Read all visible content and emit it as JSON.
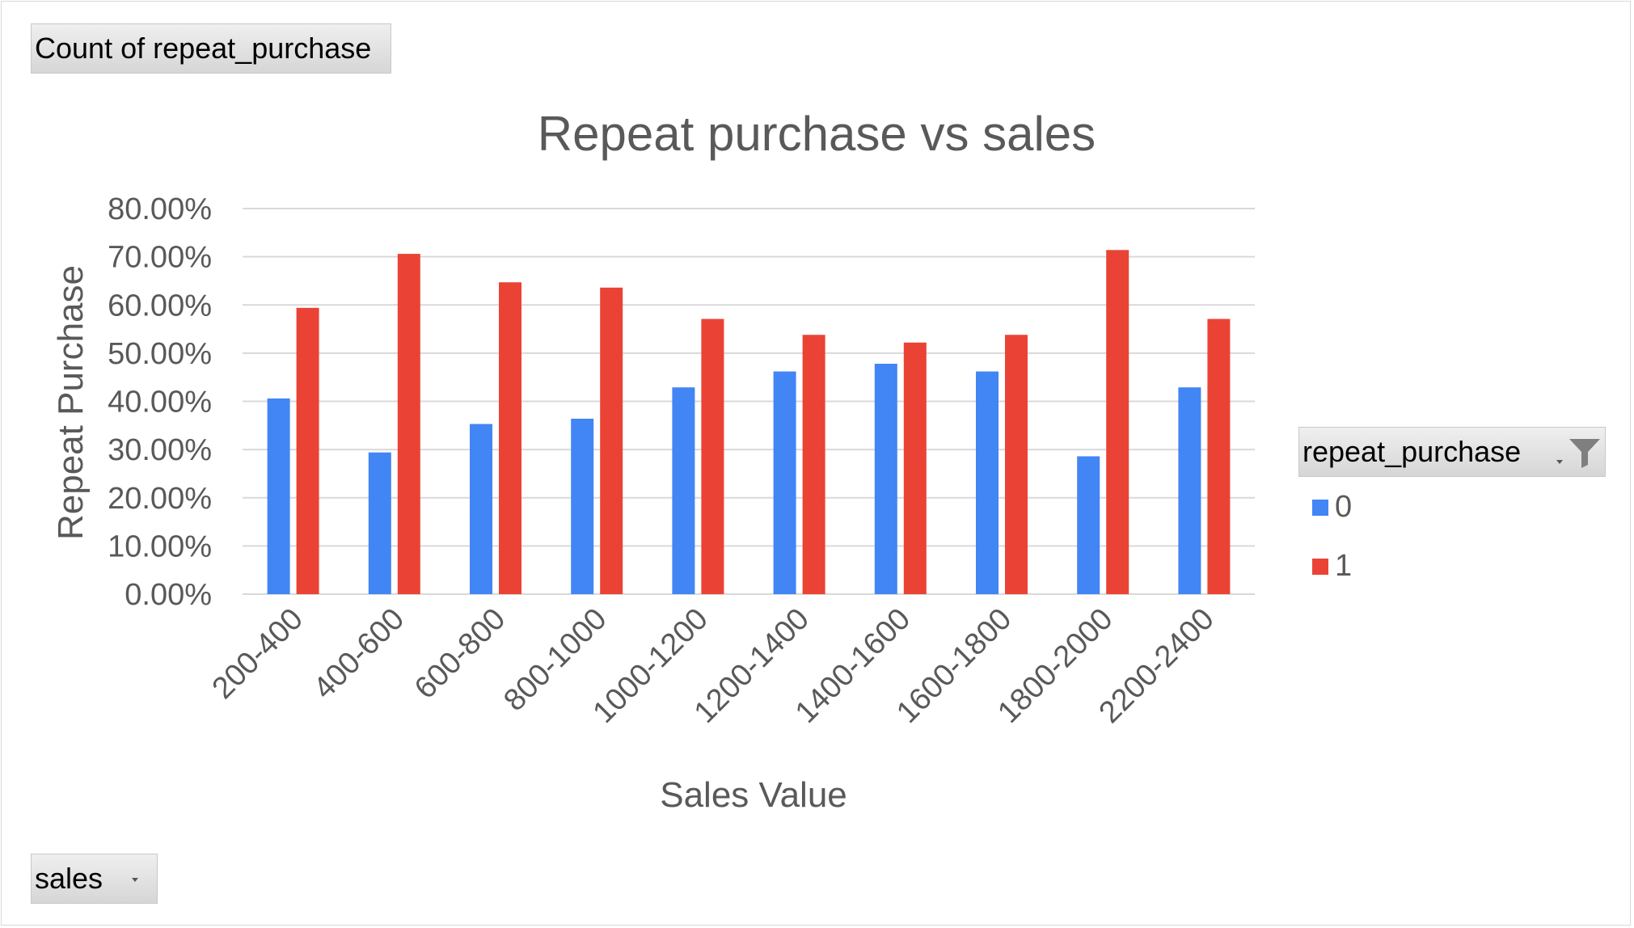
{
  "pivot": {
    "values_field_label": "Count of repeat_purchase",
    "axis_field_label": "sales",
    "legend_field_label": "repeat_purchase"
  },
  "icons": {
    "filter": "filter-icon",
    "dropdown": "chevron-down-icon"
  },
  "colors": {
    "series_0": "#4285F4",
    "series_1": "#EA4335",
    "gridline": "#d9d9d9",
    "text": "#595959"
  },
  "chart_data": {
    "type": "bar",
    "title": "Repeat purchase vs sales",
    "xlabel": "Sales Value",
    "ylabel": "Repeat Purchase",
    "categories": [
      "200-400",
      "400-600",
      "600-800",
      "800-1000",
      "1000-1200",
      "1200-1400",
      "1400-1600",
      "1600-1800",
      "1800-2000",
      "2200-2400"
    ],
    "series": [
      {
        "name": "0",
        "values": [
          0.406,
          0.294,
          0.353,
          0.364,
          0.429,
          0.462,
          0.478,
          0.462,
          0.286,
          0.429
        ]
      },
      {
        "name": "1",
        "values": [
          0.594,
          0.706,
          0.647,
          0.636,
          0.571,
          0.538,
          0.522,
          0.538,
          0.714,
          0.571
        ]
      }
    ],
    "ylim": [
      0,
      0.8
    ],
    "yticks": [
      0,
      0.1,
      0.2,
      0.3,
      0.4,
      0.5,
      0.6,
      0.7,
      0.8
    ],
    "ytick_labels": [
      "0.00%",
      "10.00%",
      "20.00%",
      "30.00%",
      "40.00%",
      "50.00%",
      "60.00%",
      "70.00%",
      "80.00%"
    ],
    "grid": true,
    "legend_position": "right"
  }
}
